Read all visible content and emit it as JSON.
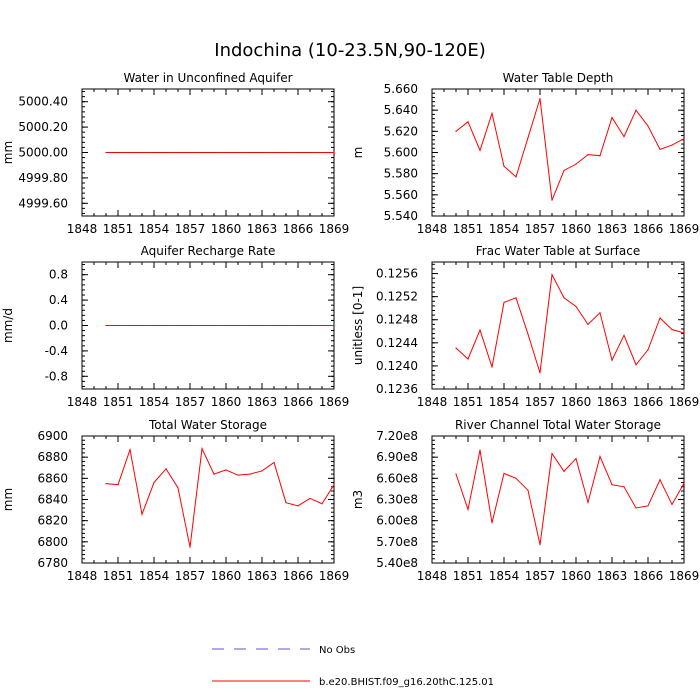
{
  "figure": {
    "title": "Indochina (10-23.5N,90-120E)"
  },
  "legend": {
    "items": [
      {
        "label": "No Obs",
        "color": "#5a5ad8",
        "style": "dashed"
      },
      {
        "label": "b.e20.BHIST.f09_g16.20thC.125.01",
        "color": "#ff0000",
        "style": "solid"
      }
    ]
  },
  "colors": {
    "series": "#ff0000",
    "axis": "#000000"
  },
  "chart_data": [
    {
      "type": "line",
      "title": "Water in Unconfined Aquifer",
      "ylabel": "mm",
      "xlim": [
        1848,
        1869
      ],
      "ylim": [
        4999.5,
        5000.5
      ],
      "xticks": [
        1848,
        1851,
        1854,
        1857,
        1860,
        1863,
        1866,
        1869
      ],
      "xtick_labels": [
        "1848",
        "1851",
        "1854",
        "1857",
        "1860",
        "1863",
        "1866",
        "1869"
      ],
      "yticks": [
        4999.6,
        4999.8,
        5000.0,
        5000.2,
        5000.4
      ],
      "ytick_labels": [
        "4999.60",
        "4999.80",
        "5000.00",
        "5000.20",
        "5000.40"
      ],
      "series": [
        {
          "x": [
            1850,
            1851,
            1852,
            1853,
            1854,
            1855,
            1856,
            1857,
            1858,
            1859,
            1860,
            1861,
            1862,
            1863,
            1864,
            1865,
            1866,
            1867,
            1868,
            1869
          ],
          "values": [
            5000,
            5000,
            5000,
            5000,
            5000,
            5000,
            5000,
            5000,
            5000,
            5000,
            5000,
            5000,
            5000,
            5000,
            5000,
            5000,
            5000,
            5000,
            5000,
            5000
          ]
        }
      ]
    },
    {
      "type": "line",
      "title": "Water Table Depth",
      "ylabel": "m",
      "xlim": [
        1848,
        1869
      ],
      "ylim": [
        5.54,
        5.66
      ],
      "xticks": [
        1848,
        1851,
        1854,
        1857,
        1860,
        1863,
        1866,
        1869
      ],
      "xtick_labels": [
        "1848",
        "1851",
        "1854",
        "1857",
        "1860",
        "1863",
        "1866",
        "1869"
      ],
      "yticks": [
        5.54,
        5.56,
        5.58,
        5.6,
        5.62,
        5.64,
        5.66
      ],
      "ytick_labels": [
        "5.540",
        "5.560",
        "5.580",
        "5.600",
        "5.620",
        "5.640",
        "5.660"
      ],
      "series": [
        {
          "x": [
            1850,
            1851,
            1852,
            1853,
            1854,
            1855,
            1856,
            1857,
            1858,
            1859,
            1860,
            1861,
            1862,
            1863,
            1864,
            1865,
            1866,
            1867,
            1868,
            1869
          ],
          "values": [
            5.62,
            5.629,
            5.602,
            5.637,
            5.587,
            5.577,
            5.614,
            5.651,
            5.555,
            5.583,
            5.589,
            5.598,
            5.597,
            5.633,
            5.615,
            5.64,
            5.625,
            5.603,
            5.607,
            5.613
          ]
        }
      ]
    },
    {
      "type": "line",
      "title": "Aquifer Recharge Rate",
      "ylabel": "mm/d",
      "xlim": [
        1848,
        1869
      ],
      "ylim": [
        -1.0,
        1.0
      ],
      "xticks": [
        1848,
        1851,
        1854,
        1857,
        1860,
        1863,
        1866,
        1869
      ],
      "xtick_labels": [
        "1848",
        "1851",
        "1854",
        "1857",
        "1860",
        "1863",
        "1866",
        "1869"
      ],
      "yticks": [
        -0.8,
        -0.4,
        0.0,
        0.4,
        0.8
      ],
      "ytick_labels": [
        "-0.8",
        "-0.4",
        "0.0",
        "0.4",
        "0.8"
      ],
      "series": [
        {
          "x": [
            1850,
            1851,
            1852,
            1853,
            1854,
            1855,
            1856,
            1857,
            1858,
            1859,
            1860,
            1861,
            1862,
            1863,
            1864,
            1865,
            1866,
            1867,
            1868,
            1869
          ],
          "values": [
            0,
            0,
            0,
            0,
            0,
            0,
            0,
            0,
            0,
            0,
            0,
            0,
            0,
            0,
            0,
            0,
            0,
            0,
            0,
            0
          ]
        }
      ]
    },
    {
      "type": "line",
      "title": "Frac Water Table at Surface",
      "ylabel": "unitless [0-1]",
      "xlim": [
        1848,
        1869
      ],
      "ylim": [
        0.1236,
        0.1258
      ],
      "xticks": [
        1848,
        1851,
        1854,
        1857,
        1860,
        1863,
        1866,
        1869
      ],
      "xtick_labels": [
        "1848",
        "1851",
        "1854",
        "1857",
        "1860",
        "1863",
        "1866",
        "1869"
      ],
      "yticks": [
        0.1236,
        0.124,
        0.1244,
        0.1248,
        0.1252,
        0.1256
      ],
      "ytick_labels": [
        "0.1236",
        "0.1240",
        "0.1244",
        "0.1248",
        "0.1252",
        "0.1256"
      ],
      "series": [
        {
          "x": [
            1850,
            1851,
            1852,
            1853,
            1854,
            1855,
            1856,
            1857,
            1858,
            1859,
            1860,
            1861,
            1862,
            1863,
            1864,
            1865,
            1866,
            1867,
            1868,
            1869
          ],
          "values": [
            0.12431,
            0.12412,
            0.12462,
            0.12398,
            0.1251,
            0.12518,
            0.12455,
            0.12388,
            0.12558,
            0.12518,
            0.12503,
            0.12472,
            0.12492,
            0.1241,
            0.12453,
            0.12402,
            0.12428,
            0.12483,
            0.12463,
            0.12457
          ]
        }
      ]
    },
    {
      "type": "line",
      "title": "Total Water Storage",
      "ylabel": "mm",
      "xlim": [
        1848,
        1869
      ],
      "ylim": [
        6780,
        6900
      ],
      "xticks": [
        1848,
        1851,
        1854,
        1857,
        1860,
        1863,
        1866,
        1869
      ],
      "xtick_labels": [
        "1848",
        "1851",
        "1854",
        "1857",
        "1860",
        "1863",
        "1866",
        "1869"
      ],
      "yticks": [
        6780,
        6800,
        6820,
        6840,
        6860,
        6880,
        6900
      ],
      "ytick_labels": [
        "6780",
        "6800",
        "6820",
        "6840",
        "6860",
        "6880",
        "6900"
      ],
      "series": [
        {
          "x": [
            1850,
            1851,
            1852,
            1853,
            1854,
            1855,
            1856,
            1857,
            1858,
            1859,
            1860,
            1861,
            1862,
            1863,
            1864,
            1865,
            1866,
            1867,
            1868,
            1869
          ],
          "values": [
            6855,
            6854,
            6887,
            6826,
            6856,
            6869,
            6851,
            6795,
            6888,
            6864,
            6868,
            6863,
            6864,
            6867,
            6875,
            6837,
            6834,
            6841,
            6836,
            6854
          ]
        }
      ]
    },
    {
      "type": "line",
      "title": "River Channel Total Water Storage",
      "ylabel": "m3",
      "xlim": [
        1848,
        1869
      ],
      "ylim": [
        540000000,
        720000000
      ],
      "xticks": [
        1848,
        1851,
        1854,
        1857,
        1860,
        1863,
        1866,
        1869
      ],
      "xtick_labels": [
        "1848",
        "1851",
        "1854",
        "1857",
        "1860",
        "1863",
        "1866",
        "1869"
      ],
      "yticks": [
        540000000,
        570000000,
        600000000,
        630000000,
        660000000,
        690000000,
        720000000
      ],
      "ytick_labels": [
        "5.40e8",
        "5.70e8",
        "6.00e8",
        "6.30e8",
        "6.60e8",
        "6.90e8",
        "7.20e8"
      ],
      "series": [
        {
          "x": [
            1850,
            1851,
            1852,
            1853,
            1854,
            1855,
            1856,
            1857,
            1858,
            1859,
            1860,
            1861,
            1862,
            1863,
            1864,
            1865,
            1866,
            1867,
            1868,
            1869
          ],
          "values": [
            666000000,
            616000000,
            700000000,
            597000000,
            667000000,
            660000000,
            643000000,
            566000000,
            695000000,
            670000000,
            688000000,
            626000000,
            691000000,
            651000000,
            648000000,
            618000000,
            621000000,
            658000000,
            623000000,
            653000000
          ]
        }
      ]
    }
  ]
}
